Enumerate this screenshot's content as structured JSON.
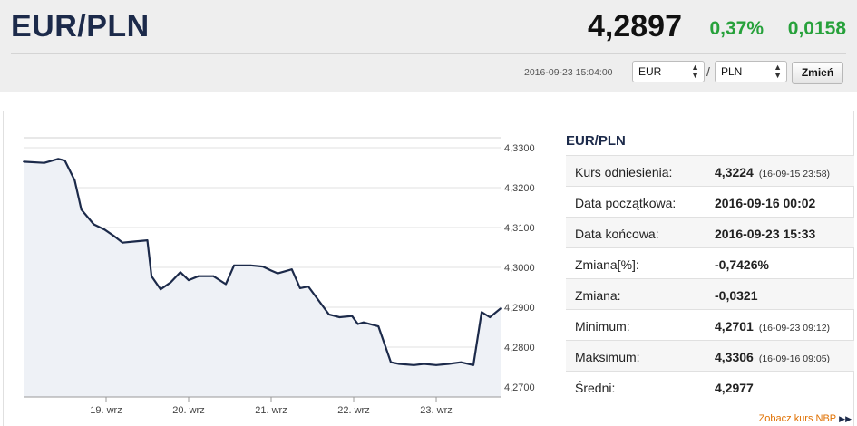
{
  "header": {
    "pair": "EUR/PLN",
    "rate": "4,2897",
    "change_pct": "0,37%",
    "change_abs": "0,0158",
    "change_color": "#27a13b",
    "timestamp": "2016-09-23 15:04:00"
  },
  "controls": {
    "from_currency": "EUR",
    "to_currency": "PLN",
    "separator": "/",
    "submit_label": "Zmień"
  },
  "chart_data": {
    "type": "line",
    "x_ticks": [
      "19. wrz",
      "20. wrz",
      "21. wrz",
      "22. wrz",
      "23. wrz"
    ],
    "y_ticks": [
      "4,3300",
      "4,3200",
      "4,3100",
      "4,3000",
      "4,2900",
      "4,2800",
      "4,2700"
    ],
    "ylim": [
      4.2675,
      4.3325
    ],
    "xlim": [
      0,
      5.78
    ],
    "grid": true,
    "line_color": "#1c2a4a",
    "area_color": "#eef1f6",
    "x": [
      0.0,
      0.25,
      0.42,
      0.5,
      0.62,
      0.7,
      0.85,
      0.98,
      1.1,
      1.2,
      1.35,
      1.5,
      1.55,
      1.66,
      1.78,
      1.9,
      2.0,
      2.12,
      2.3,
      2.45,
      2.55,
      2.75,
      2.9,
      3.0,
      3.08,
      3.25,
      3.35,
      3.45,
      3.7,
      3.83,
      3.98,
      4.05,
      4.12,
      4.3,
      4.45,
      4.55,
      4.73,
      4.85,
      5.0,
      5.15,
      5.3,
      5.45,
      5.55,
      5.65,
      5.78
    ],
    "y": [
      4.3265,
      4.3262,
      4.3272,
      4.3268,
      4.3218,
      4.3145,
      4.3108,
      4.3095,
      4.3078,
      4.3062,
      4.3065,
      4.3068,
      4.2978,
      4.2945,
      4.2962,
      4.2988,
      4.2968,
      4.2978,
      4.2978,
      4.2958,
      4.3005,
      4.3005,
      4.3002,
      4.2992,
      4.2985,
      4.2995,
      4.2948,
      4.2952,
      4.2882,
      4.2875,
      4.2878,
      4.2858,
      4.2862,
      4.2852,
      4.2762,
      4.2758,
      4.2755,
      4.2758,
      4.2755,
      4.2758,
      4.2762,
      4.2755,
      4.2888,
      4.2875,
      4.2897
    ]
  },
  "side": {
    "title": "EUR/PLN",
    "rows": [
      {
        "label": "Kurs odniesienia:",
        "value": "4,3224",
        "note": "(16-09-15 23:58)"
      },
      {
        "label": "Data początkowa:",
        "value": "2016-09-16 00:02",
        "note": ""
      },
      {
        "label": "Data końcowa:",
        "value": "2016-09-23 15:33",
        "note": ""
      },
      {
        "label": "Zmiana[%]:",
        "value": "-0,7426%",
        "note": ""
      },
      {
        "label": "Zmiana:",
        "value": "-0,0321",
        "note": ""
      },
      {
        "label": "Minimum:",
        "value": "4,2701",
        "note": "(16-09-23 09:12)"
      },
      {
        "label": "Maksimum:",
        "value": "4,3306",
        "note": "(16-09-16 09:05)"
      },
      {
        "label": "Średni:",
        "value": "4,2977",
        "note": ""
      }
    ]
  },
  "links": {
    "nbp_rate": "Zobacz kurs NBP",
    "nbp_icon": "double-chevron-right-icon"
  }
}
